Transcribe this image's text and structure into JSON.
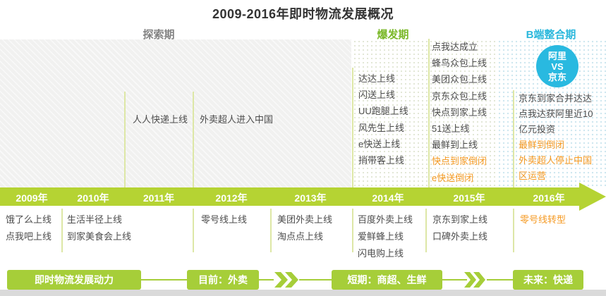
{
  "title": "2009-2016年即时物流发展概况",
  "phases": [
    {
      "label": "探索期"
    },
    {
      "label": "爆发期"
    },
    {
      "label": "B端整合期"
    }
  ],
  "versus": {
    "top": "阿里",
    "mid": "VS",
    "bottom": "京东"
  },
  "timeline": {
    "years": [
      "2009年",
      "2010年",
      "2011年",
      "2012年",
      "2013年",
      "2014年",
      "2015年",
      "2016年"
    ]
  },
  "events_above": {
    "y2011": [
      {
        "t": "人人快递上线"
      }
    ],
    "y2012": [
      {
        "t": "外卖超人进入中国"
      }
    ],
    "y2014": [
      {
        "t": "达达上线"
      },
      {
        "t": "闪送上线"
      },
      {
        "t": "UU跑腿上线"
      },
      {
        "t": "风先生上线"
      },
      {
        "t": "e快送上线"
      },
      {
        "t": "捎带客上线"
      }
    ],
    "y2015": [
      {
        "t": "点我达成立"
      },
      {
        "t": "蜂鸟众包上线"
      },
      {
        "t": "美团众包上线"
      },
      {
        "t": "京东众包上线"
      },
      {
        "t": "快点到家上线"
      },
      {
        "t": "51送上线"
      },
      {
        "t": "最鲜到上线"
      },
      {
        "t": "快点到家倒闭",
        "hl": true
      },
      {
        "t": "e快送倒闭",
        "hl": true
      }
    ],
    "y2016": [
      {
        "t": "京东到家合并达达"
      },
      {
        "t": "点我达获阿里近10亿元投资"
      },
      {
        "t": "最鲜到倒闭",
        "hl": true
      },
      {
        "t": "外卖超人停止中国区运营",
        "hl": true
      }
    ]
  },
  "events_below": {
    "y2009": [
      {
        "t": "饿了么上线"
      },
      {
        "t": "点我吧上线"
      }
    ],
    "y2010": [
      {
        "t": "生活半径上线"
      },
      {
        "t": "到家美食会上线"
      }
    ],
    "y2012": [
      {
        "t": "零号线上线"
      }
    ],
    "y2013": [
      {
        "t": "美团外卖上线"
      },
      {
        "t": "淘点点上线"
      }
    ],
    "y2014": [
      {
        "t": "百度外卖上线"
      },
      {
        "t": "爱鲜蜂上线"
      },
      {
        "t": "闪电购上线"
      }
    ],
    "y2015": [
      {
        "t": "京东到家上线"
      },
      {
        "t": "口碑外卖上线"
      }
    ],
    "y2016": [
      {
        "t": "零号线转型",
        "hl": true
      }
    ]
  },
  "flow": {
    "driver": "即时物流发展动力",
    "stages": [
      "目前：外卖",
      "短期：商超、生鲜",
      "未来：快递"
    ]
  },
  "colors": {
    "green_bar": "#b5d333",
    "green_button": "#a6ce39",
    "phase_explore": "#828282",
    "phase_burst": "#7ab828",
    "phase_b2b": "#2cb8dc",
    "circle": "#29b9e0",
    "highlight": "#f59a23",
    "text": "#4c4c4c",
    "divider": "#dde7a6",
    "strip": "#dadada"
  }
}
